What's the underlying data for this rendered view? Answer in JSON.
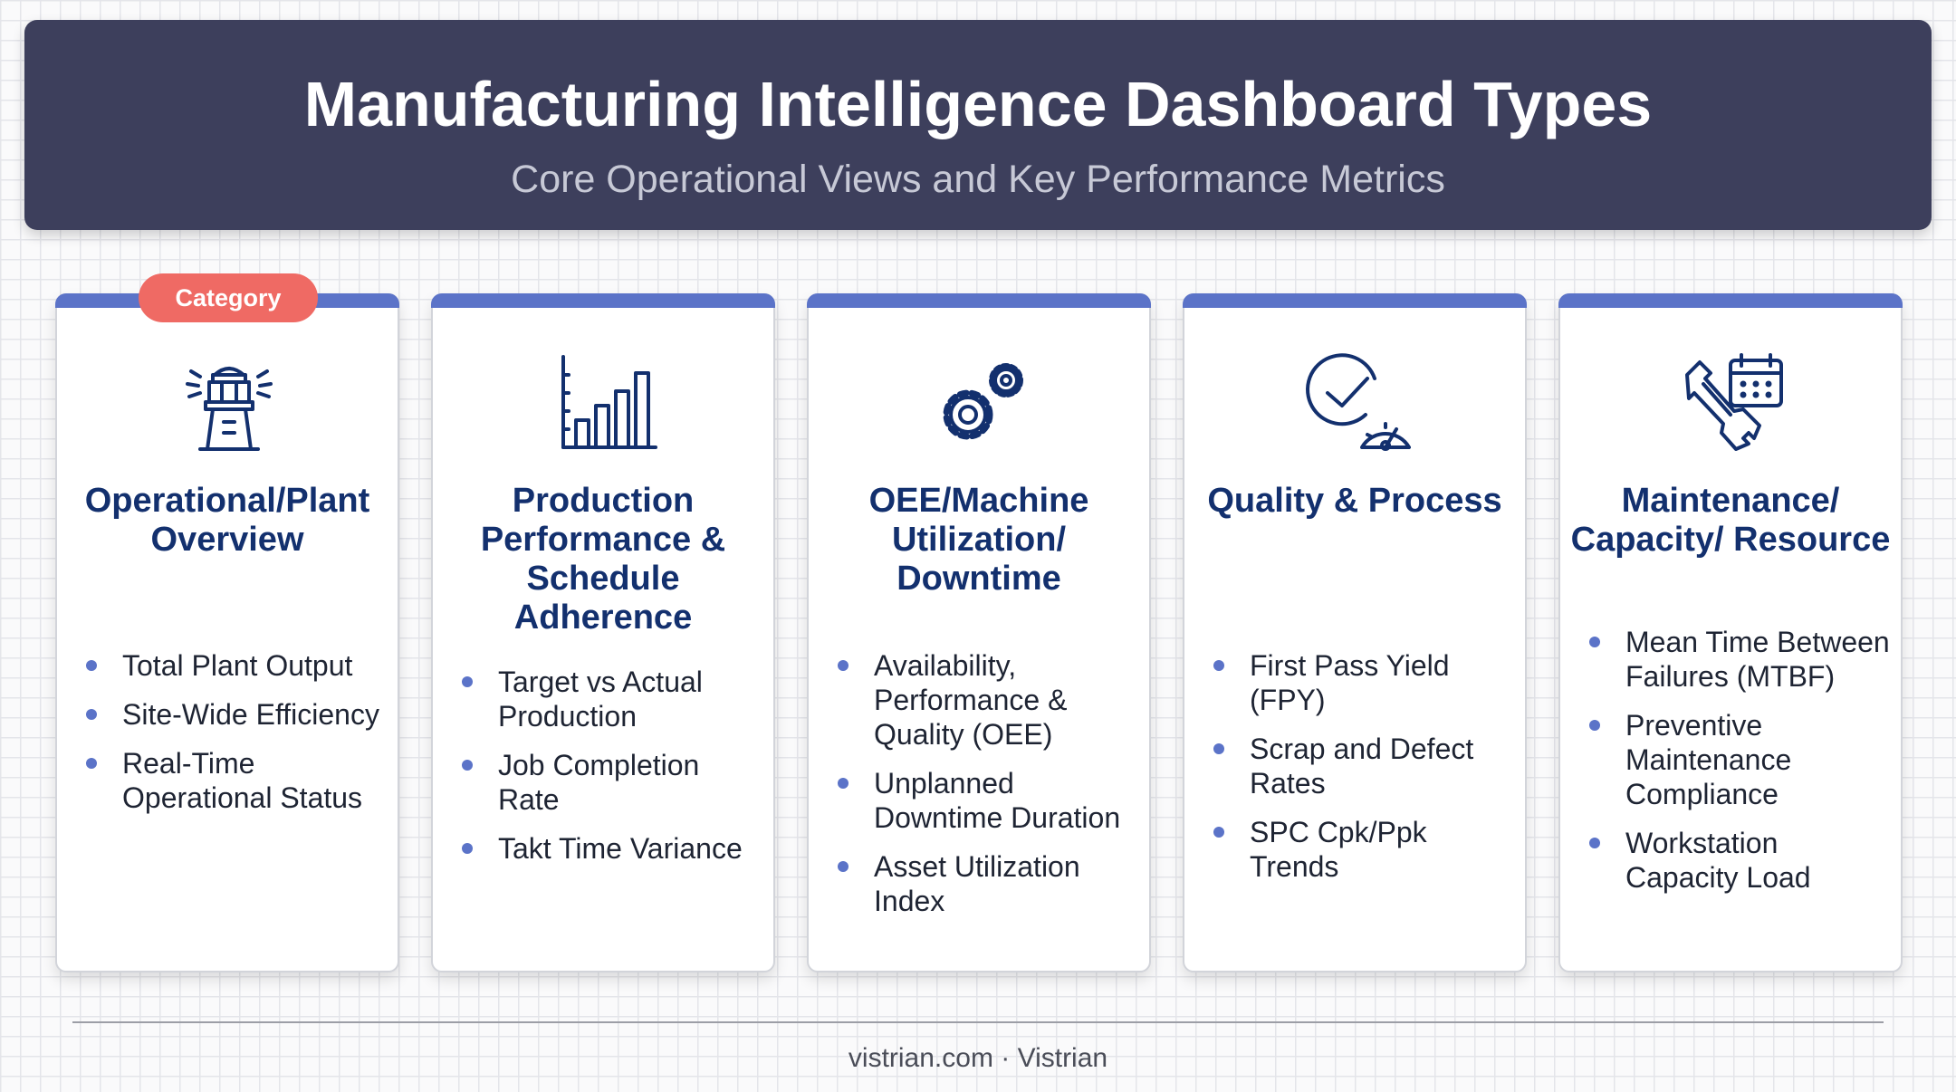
{
  "header": {
    "title": "Manufacturing Intelligence Dashboard Types",
    "subtitle": "Core Operational Views and Key Performance Metrics"
  },
  "badge": "Category",
  "cards": [
    {
      "icon": "control-tower-icon",
      "title": "Operational/Plant Overview",
      "bullets": [
        "Total Plant Output",
        "Site-Wide Efficiency",
        "Real-Time Operational Status"
      ]
    },
    {
      "icon": "bar-chart-icon",
      "title": "Production Performance & Schedule Adherence",
      "bullets": [
        "Target vs Actual Production",
        "Job Completion Rate",
        "Takt Time Variance"
      ]
    },
    {
      "icon": "gears-icon",
      "title": "OEE/Machine Utilization/ Downtime",
      "bullets": [
        "Availability, Performance & Quality (OEE)",
        "Unplanned Downtime Duration",
        "Asset Utilization Index"
      ]
    },
    {
      "icon": "check-gauge-icon",
      "title": "Quality & Process",
      "bullets": [
        "First Pass Yield (FPY)",
        "Scrap and Defect Rates",
        "SPC Cpk/Ppk Trends"
      ]
    },
    {
      "icon": "wrench-calendar-icon",
      "title": "Maintenance/ Capacity/ Resource",
      "bullets": [
        "Mean Time Between Failures (MTBF)",
        "Preventive Maintenance Compliance",
        "Workstation Capacity Load"
      ]
    }
  ],
  "footer": "vistrian.com · Vistrian",
  "colors": {
    "header_bg": "#3d3f5c",
    "accent": "#5b73c8",
    "badge": "#ef6a64",
    "title_text": "#13306e"
  }
}
